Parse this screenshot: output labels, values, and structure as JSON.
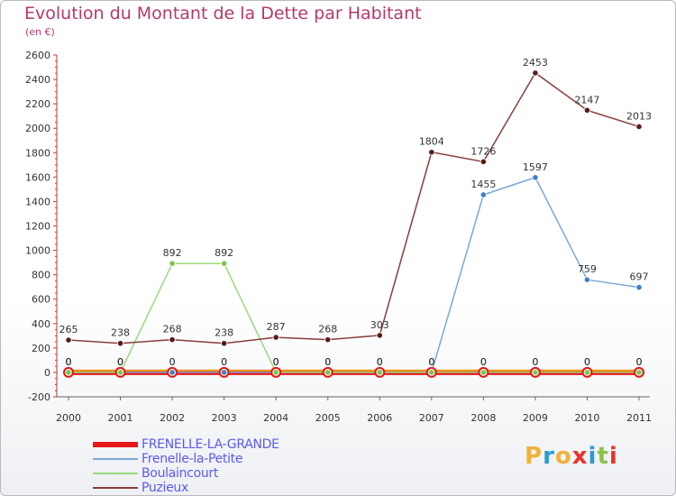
{
  "title": "Evolution du Montant de la Dette par Habitant",
  "subtitle": "(en €)",
  "logo": "Proxiti",
  "chart_data": {
    "type": "line",
    "x": [
      "2000",
      "2001",
      "2002",
      "2003",
      "2004",
      "2005",
      "2006",
      "2007",
      "2008",
      "2009",
      "2010",
      "2011"
    ],
    "ylim": [
      -200,
      2600
    ],
    "yticks": [
      -200,
      0,
      200,
      400,
      600,
      800,
      1000,
      1200,
      1400,
      1600,
      1800,
      2000,
      2200,
      2400,
      2600
    ],
    "grid": false,
    "legend_position": "bottom-left",
    "series": [
      {
        "name": "FRENELLE-LA-GRANDE",
        "color": "#e8181d",
        "marker": "#e8181d",
        "values": [
          0,
          0,
          0,
          0,
          0,
          0,
          0,
          0,
          0,
          0,
          0,
          0
        ],
        "labels": [
          "0",
          "0",
          "0",
          "0",
          "0",
          "0",
          "0",
          "0",
          "0",
          "0",
          "0",
          "0"
        ]
      },
      {
        "name": "Frenelle-la-Petite",
        "color": "#7ba8d6",
        "marker": "#3f80c8",
        "values": [
          0,
          0,
          0,
          0,
          0,
          0,
          0,
          0,
          1455,
          1597,
          759,
          697
        ],
        "labels": [
          "0",
          "0",
          "0",
          "0",
          "0",
          "0",
          "0",
          "0",
          "1455",
          "1597",
          "759",
          "697"
        ]
      },
      {
        "name": "Boulaincourt",
        "color": "#9bd97a",
        "marker": "#7cc450",
        "values": [
          0,
          0,
          892,
          892,
          0,
          0,
          0,
          0,
          0,
          0,
          0,
          0
        ],
        "labels": [
          "0",
          "0",
          "892",
          "892",
          "0",
          "0",
          "0",
          "0",
          "0",
          "0",
          "0",
          "0"
        ]
      },
      {
        "name": "Puzieux",
        "color": "#8a3c3c",
        "marker": "#5a1a1a",
        "values": [
          265,
          238,
          268,
          238,
          287,
          268,
          303,
          1804,
          1726,
          2453,
          2147,
          2013
        ],
        "labels": [
          "265",
          "238",
          "268",
          "238",
          "287",
          "268",
          "303",
          "1804",
          "1726",
          "2453",
          "2147",
          "2013"
        ]
      }
    ]
  },
  "colors": {
    "title": "#b5396c",
    "legend_text": "#5a5af0",
    "axis": "#c0392b",
    "logo": [
      "#f0b13a",
      "#2a9bd6",
      "#f0b13a",
      "#e8342a",
      "#2a9bd6",
      "#8bc34a",
      "#e8342a"
    ]
  }
}
